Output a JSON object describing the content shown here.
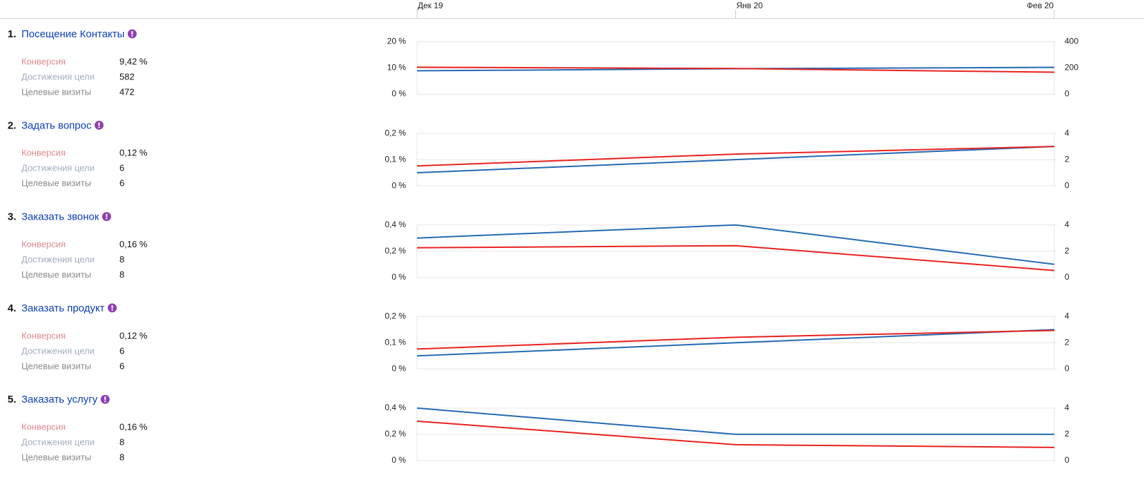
{
  "timeline": {
    "categories": [
      "Дек 19",
      "Янв 20",
      "Фев 20"
    ]
  },
  "goals": [
    {
      "number": "1.",
      "title": "Посещение Контакты",
      "metrics": [
        {
          "label": "Конверсия",
          "value": "9,42 %"
        },
        {
          "label": "Достижения цели",
          "value": "582"
        },
        {
          "label": "Целевые визиты",
          "value": "472"
        }
      ]
    },
    {
      "number": "2.",
      "title": "Задать вопрос",
      "metrics": [
        {
          "label": "Конверсия",
          "value": "0,12 %"
        },
        {
          "label": "Достижения цели",
          "value": "6"
        },
        {
          "label": "Целевые визиты",
          "value": "6"
        }
      ]
    },
    {
      "number": "3.",
      "title": "Заказать звонок",
      "metrics": [
        {
          "label": "Конверсия",
          "value": "0,16 %"
        },
        {
          "label": "Достижения цели",
          "value": "8"
        },
        {
          "label": "Целевые визиты",
          "value": "8"
        }
      ]
    },
    {
      "number": "4.",
      "title": "Заказать продукт",
      "metrics": [
        {
          "label": "Конверсия",
          "value": "0,12 %"
        },
        {
          "label": "Достижения цели",
          "value": "6"
        },
        {
          "label": "Целевые визиты",
          "value": "6"
        }
      ]
    },
    {
      "number": "5.",
      "title": "Заказать услугу",
      "metrics": [
        {
          "label": "Конверсия",
          "value": "0,16 %"
        },
        {
          "label": "Достижения цели",
          "value": "8"
        },
        {
          "label": "Целевые визиты",
          "value": "8"
        }
      ]
    }
  ],
  "chart_data": [
    {
      "type": "line",
      "ylim": [
        0,
        20
      ],
      "yticks": [
        {
          "value": 0,
          "label": "0 %"
        },
        {
          "value": 10,
          "label": "10 %"
        },
        {
          "value": 20,
          "label": "20 %"
        }
      ],
      "y2lim": [
        0,
        400
      ],
      "y2ticks": [
        0,
        200,
        400
      ],
      "grid": true,
      "series": [
        {
          "color": "#2369b3",
          "axis": "y2",
          "values": [
            179,
            195,
            205
          ]
        },
        {
          "color": "#e8201e",
          "values": [
            10.3,
            9.8,
            8.4
          ]
        }
      ]
    },
    {
      "type": "line",
      "ylim": [
        0,
        0.2
      ],
      "yticks": [
        {
          "value": 0,
          "label": "0 %"
        },
        {
          "value": 0.1,
          "label": "0,1 %"
        },
        {
          "value": 0.2,
          "label": "0,2 %"
        }
      ],
      "y2lim": [
        0,
        4
      ],
      "y2ticks": [
        0,
        2,
        4
      ],
      "grid": true,
      "series": [
        {
          "color": "#2369b3",
          "axis": "y2",
          "values": [
            1,
            2,
            3
          ]
        },
        {
          "color": "#e8201e",
          "values": [
            0.076,
            0.121,
            0.15
          ]
        }
      ]
    },
    {
      "type": "line",
      "ylim": [
        0,
        0.4
      ],
      "yticks": [
        {
          "value": 0,
          "label": "0 %"
        },
        {
          "value": 0.2,
          "label": "0,2 %"
        },
        {
          "value": 0.4,
          "label": "0,4 %"
        }
      ],
      "y2lim": [
        0,
        4
      ],
      "y2ticks": [
        0,
        2,
        4
      ],
      "grid": true,
      "series": [
        {
          "color": "#2369b3",
          "axis": "y2",
          "values": [
            3,
            4,
            1
          ]
        },
        {
          "color": "#e8201e",
          "values": [
            0.226,
            0.242,
            0.053
          ]
        }
      ]
    },
    {
      "type": "line",
      "ylim": [
        0,
        0.2
      ],
      "yticks": [
        {
          "value": 0,
          "label": "0 %"
        },
        {
          "value": 0.1,
          "label": "0,1 %"
        },
        {
          "value": 0.2,
          "label": "0,2 %"
        }
      ],
      "y2lim": [
        0,
        4
      ],
      "y2ticks": [
        0,
        2,
        4
      ],
      "grid": true,
      "series": [
        {
          "color": "#2369b3",
          "axis": "y2",
          "values": [
            1,
            2,
            3
          ]
        },
        {
          "color": "#e8201e",
          "values": [
            0.076,
            0.121,
            0.147
          ]
        }
      ]
    },
    {
      "type": "line",
      "ylim": [
        0,
        0.4
      ],
      "yticks": [
        {
          "value": 0,
          "label": "0 %"
        },
        {
          "value": 0.2,
          "label": "0,2 %"
        },
        {
          "value": 0.4,
          "label": "0,4 %"
        }
      ],
      "y2lim": [
        0,
        4
      ],
      "y2ticks": [
        0,
        2,
        4
      ],
      "grid": true,
      "series": [
        {
          "color": "#2369b3",
          "axis": "y2",
          "values": [
            4,
            2,
            2
          ]
        },
        {
          "color": "#e8201e",
          "values": [
            0.3,
            0.121,
            0.1
          ]
        }
      ]
    }
  ]
}
